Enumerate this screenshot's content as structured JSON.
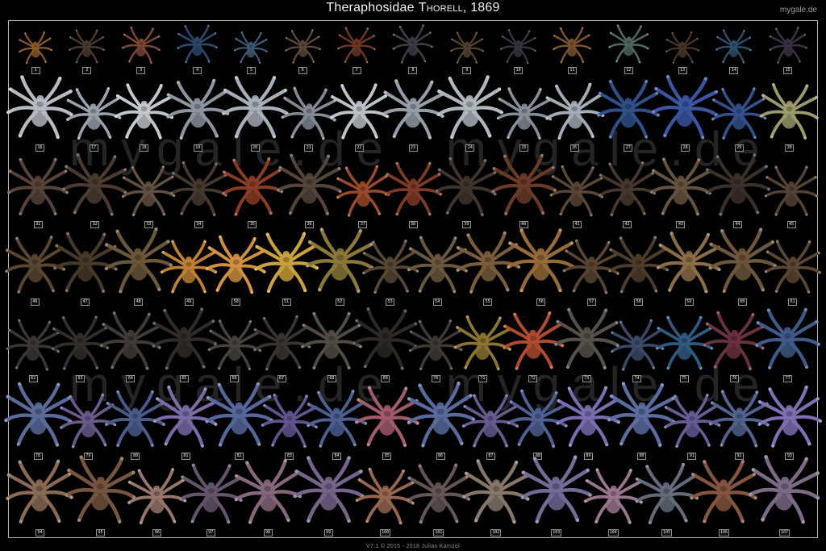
{
  "header": {
    "title_family": "Theraphosidae",
    "title_author": "Thorell",
    "title_year": ", 1869",
    "site": "mygale.de",
    "title_color": "#f2f2f2",
    "site_color": "#9a9a9a"
  },
  "watermark": {
    "text": "mygale.de",
    "color": "#242424"
  },
  "footer": {
    "credit": "V7.1 © 2015 - 2018 Julian Kamzol",
    "credit_color": "#8e8e8e"
  },
  "poster": {
    "background": "#000000",
    "frame_border_color": "#b4b4b4",
    "specimen_label_text_color": "#e8e8e8",
    "specimen_label_border_color": "#8f8f8f",
    "total_specimens": 107,
    "rows": [
      {
        "labels": [
          1,
          2,
          3,
          4,
          5,
          6,
          7,
          8,
          9,
          10,
          11,
          12,
          13,
          14,
          15
        ],
        "size": 50,
        "palette": [
          "#8a5a28",
          "#4a3a2e",
          "#7a4632",
          "#2c4668",
          "#3e5a74",
          "#5a4836",
          "#6e3424",
          "#3c3c46",
          "#52422e",
          "#343440",
          "#7a5230",
          "#4e6660",
          "#463628",
          "#2e4e6e",
          "#3a3242"
        ]
      },
      {
        "labels": [
          16,
          17,
          18,
          19,
          20,
          21,
          22,
          23,
          24,
          25,
          26,
          27,
          28,
          29,
          30
        ],
        "size": 82,
        "palette": [
          "#b6bbc2",
          "#98a0aa",
          "#c2c7cd",
          "#8c949e",
          "#a8afb8",
          "#828a94",
          "#bdc2c8",
          "#959ea7",
          "#b0b6be",
          "#868e98",
          "#a4abb4",
          "#2f4f86",
          "#3a56a0",
          "#34508c",
          "#9a9a6a"
        ]
      },
      {
        "labels": [
          31,
          32,
          33,
          34,
          35,
          36,
          37,
          38,
          39,
          40,
          41,
          42,
          43,
          44,
          45
        ],
        "size": 80,
        "palette": [
          "#564238",
          "#4a3a30",
          "#605040",
          "#443830",
          "#8a3c22",
          "#54443a",
          "#9a4a28",
          "#7e3a24",
          "#3e342c",
          "#6a3a28",
          "#584636",
          "#46382e",
          "#64523e",
          "#3a302a",
          "#524234"
        ]
      },
      {
        "labels": [
          46,
          47,
          48,
          49,
          50,
          51,
          52,
          53,
          54,
          55,
          56,
          57,
          58,
          59,
          60,
          61
        ],
        "size": 84,
        "palette": [
          "#5a4630",
          "#473828",
          "#6a5638",
          "#c08034",
          "#d09040",
          "#caa23c",
          "#8a7838",
          "#564634",
          "#6a583e",
          "#7a5c3a",
          "#966a38",
          "#584430",
          "#4e3c2a",
          "#8a6c46",
          "#6c563c",
          "#5a4632"
        ]
      },
      {
        "labels": [
          62,
          63,
          64,
          65,
          66,
          67,
          68,
          69,
          70,
          71,
          72,
          73,
          74,
          75,
          76,
          77
        ],
        "size": 80,
        "palette": [
          "#3a3632",
          "#322e2a",
          "#403b36",
          "#2e2b28",
          "#46413c",
          "#39342f",
          "#514b44",
          "#2b2825",
          "#3e3933",
          "#8a7430",
          "#b04a30",
          "#56504a",
          "#3a4a66",
          "#2e5a80",
          "#6a3040",
          "#3e5a88"
        ]
      },
      {
        "labels": [
          78,
          79,
          80,
          81,
          82,
          83,
          84,
          85,
          86,
          87,
          88,
          89,
          90,
          91,
          92,
          93
        ],
        "size": 84,
        "palette": [
          "#5a6a9a",
          "#6a5a8a",
          "#4a5a8a",
          "#7a6aa6",
          "#55669a",
          "#61548e",
          "#4d5e90",
          "#a05a6a",
          "#586a9c",
          "#665a90",
          "#505f92",
          "#7a6cae",
          "#5a6ca0",
          "#685c94",
          "#52628f",
          "#7f6fb0"
        ]
      },
      {
        "labels": [
          94,
          95,
          96,
          97,
          98,
          99,
          100,
          101,
          102,
          103,
          104,
          105,
          106,
          107
        ],
        "size": 88,
        "palette": [
          "#8a6a54",
          "#74543e",
          "#96766a",
          "#64546a",
          "#86667a",
          "#74648a",
          "#96664e",
          "#645454",
          "#86766a",
          "#746a96",
          "#96768a",
          "#646a7a",
          "#84543e",
          "#7a6a86"
        ]
      }
    ]
  }
}
